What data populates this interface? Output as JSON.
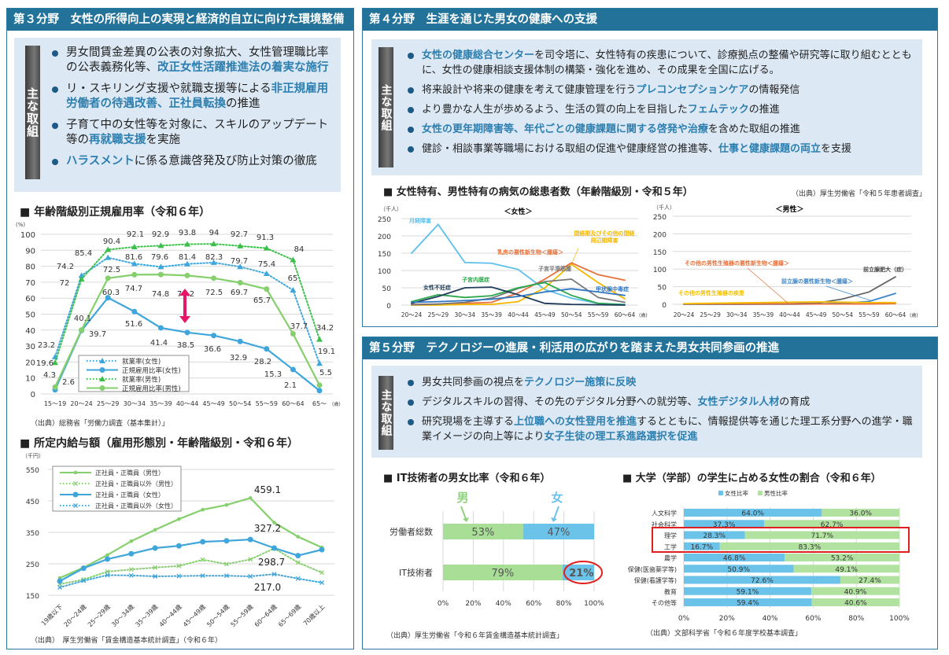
{
  "section3": {
    "header": "第３分野　女性の所得向上の実現と経済的自立に向けた環境整備",
    "label": "主な取組",
    "bullets": [
      [
        {
          "t": "男女間賃金差異の公表の対象拡大、女性管理職比率の公表義務化等、"
        },
        {
          "t": "改正女性活躍推進法の着実な施行",
          "hl": true
        }
      ],
      [
        {
          "t": "リ・スキリング支援や就職支援等による"
        },
        {
          "t": "非正規雇用労働者の待遇改善、正社員転換",
          "hl": true
        },
        {
          "t": "の推進"
        }
      ],
      [
        {
          "t": "子育て中の女性等を対象に、スキルのアップデート等の"
        },
        {
          "t": "再就職支援",
          "hl": true
        },
        {
          "t": "を実施"
        }
      ],
      [
        {
          "t": "ハラスメント",
          "hl": true
        },
        {
          "t": "に係る意識啓発及び防止対策の徹底"
        }
      ]
    ]
  },
  "section4": {
    "header": "第４分野　生涯を通じた男女の健康への支援",
    "label": "主な取組",
    "bullets": [
      [
        {
          "t": "女性の健康総合センター",
          "hl": true
        },
        {
          "t": "を司令塔に、女性特有の疾患について、診療拠点の整備や研究等に取り組むとともに、女性の健康相談支援体制の構築・強化を進め、その成果を全国に広げる。"
        }
      ],
      [
        {
          "t": "将来設計や将来の健康を考えて健康管理を行う"
        },
        {
          "t": "プレコンセプションケア",
          "hl": true
        },
        {
          "t": "の情報発信"
        }
      ],
      [
        {
          "t": "より豊かな人生が歩めるよう、生活の質の向上を目指した"
        },
        {
          "t": "フェムテック",
          "hl": true
        },
        {
          "t": "の推進"
        }
      ],
      [
        {
          "t": "女性の更年期障害等、年代ごとの健康課題に関する啓発や治療",
          "hl": true
        },
        {
          "t": "を含めた取組の推進"
        }
      ],
      [
        {
          "t": "健診・相談事業等職場における取組の促進や健康経営の推進等、"
        },
        {
          "t": "仕事と健康課題の両立",
          "hl": true
        },
        {
          "t": "を支援"
        }
      ]
    ]
  },
  "section5": {
    "header": "第５分野　テクノロジーの進展・利活用の広がりを踏まえた男女共同参画の推進",
    "label": "主な取組",
    "bullets": [
      [
        {
          "t": "男女共同参画の視点を"
        },
        {
          "t": "テクノロジー施策に反映",
          "hl": true
        }
      ],
      [
        {
          "t": "デジタルスキルの習得、その先のデジタル分野への就労等、"
        },
        {
          "t": "女性デジタル人材",
          "hl": true
        },
        {
          "t": "の育成"
        }
      ],
      [
        {
          "t": "研究現場を主導する"
        },
        {
          "t": "上位職への女性登用を推進",
          "hl": true
        },
        {
          "t": "するとともに、情報提供等を通じた理工系分野への進学・職業イメージの向上等により"
        },
        {
          "t": "女子生徒の理工系進路選択を促進",
          "hl": true
        }
      ]
    ]
  },
  "colors": {
    "header": "#22729a",
    "highlight": "#2d7fb0",
    "female": "#5bb5e0",
    "male": "#8fd27a",
    "accent_pink": "#e6176b",
    "red_box": "#e02020"
  },
  "chart_data": [
    {
      "id": "employment",
      "type": "line",
      "title": "■ 年齢階級別正規雇用率（令和６年）",
      "ylabel": "(%)",
      "xunit": "(歳)",
      "ylim": [
        0,
        100
      ],
      "yticks": [
        0,
        10,
        20,
        30,
        40,
        50,
        60,
        70,
        80,
        90,
        100
      ],
      "categories": [
        "15～19",
        "20～24",
        "25～29",
        "30～34",
        "35～39",
        "40～44",
        "45～49",
        "50～54",
        "55～59",
        "60～64",
        "65～"
      ],
      "series": [
        {
          "name": "就業率(女性)",
          "color": "#3fa6dc",
          "style": "dotted",
          "marker": "triangle",
          "values": [
            23.2,
            74.2,
            85.4,
            81.6,
            79.6,
            81.4,
            82.3,
            79.7,
            75.4,
            65.0,
            19.1
          ]
        },
        {
          "name": "正規雇用比率(女性)",
          "color": "#3fa6dc",
          "style": "solid",
          "marker": "circle",
          "values": [
            2.6,
            39.7,
            60.3,
            51.6,
            41.4,
            38.5,
            36.6,
            32.9,
            28.2,
            15.3,
            2.1
          ]
        },
        {
          "name": "就業率(男性)",
          "color": "#3cbf4a",
          "style": "dotted",
          "marker": "triangle",
          "values": [
            19.6,
            72.0,
            90.4,
            92.1,
            92.9,
            93.8,
            94.0,
            92.7,
            91.3,
            84.0,
            34.2
          ]
        },
        {
          "name": "正規雇用比率(男性)",
          "color": "#86cf6d",
          "style": "solid",
          "marker": "circle",
          "values": [
            4.3,
            40.1,
            72.5,
            74.7,
            74.8,
            74.2,
            72.5,
            69.7,
            65.7,
            37.7,
            5.5
          ]
        }
      ],
      "legend": "bottom-left",
      "source": "（出典）総務省「労働力調査（基本集計）」"
    },
    {
      "id": "wage",
      "type": "line",
      "title": "■ 所定内給与額（雇用形態別・年齢階級別・令和６年）",
      "ylabel": "（千円）",
      "ylim": [
        150,
        550
      ],
      "yticks": [
        150,
        250,
        350,
        450,
        550
      ],
      "categories": [
        "19歳以下",
        "20～24歳",
        "25～29歳",
        "30～34歳",
        "35～39歳",
        "40～44歳",
        "45～49歳",
        "50～54歳",
        "55～59歳",
        "60～64歳",
        "65～69歳",
        "70歳以上"
      ],
      "series": [
        {
          "name": "正社員・正職員（男性）",
          "color": "#86cf6d",
          "style": "solid",
          "marker": "dot",
          "values": [
            205,
            238,
            278,
            322,
            358,
            392,
            422,
            437,
            459.1,
            381,
            336,
            302
          ]
        },
        {
          "name": "正社員・正職員以外（男性）",
          "color": "#86cf6d",
          "style": "dotted",
          "marker": "x",
          "values": [
            185,
            200,
            225,
            232,
            238,
            243,
            263,
            249,
            264,
            298.7,
            254,
            222
          ]
        },
        {
          "name": "正社員・正職員（女性）",
          "color": "#3fa6dc",
          "style": "solid",
          "marker": "circle",
          "values": [
            195,
            236,
            265,
            282,
            300,
            307,
            320,
            323,
            327.2,
            300,
            276,
            295
          ]
        },
        {
          "name": "正社員・正職員以外（女性）",
          "color": "#3fa6dc",
          "style": "dotted",
          "marker": "x",
          "values": [
            175,
            196,
            214,
            213,
            210,
            211,
            212,
            212,
            210,
            217.0,
            203,
            190
          ]
        }
      ],
      "labels": [
        "459.1",
        "327.2",
        "298.7",
        "217.0"
      ],
      "legend": "top-left",
      "source": "（出典）　厚生労働省「賃金構造基本統計調査」（令和６年）"
    },
    {
      "id": "disease-female",
      "type": "line",
      "title": "■ 女性特有、男性特有の病気の総患者数（年齢階級別・令和５年）",
      "subtitle": "＜女性＞",
      "ylabel": "（千人）",
      "xunit": "(歳)",
      "ylim": [
        0,
        250
      ],
      "yticks": [
        0,
        50,
        100,
        150,
        200,
        250
      ],
      "categories": [
        "20～24",
        "25～29",
        "30～34",
        "35～39",
        "40～44",
        "45～49",
        "50～54",
        "55～59",
        "60～64"
      ],
      "series": [
        {
          "name": "月経障害",
          "color": "#5cc0ea",
          "values": [
            150,
            233,
            123,
            121,
            103,
            45,
            20,
            5,
            2
          ]
        },
        {
          "name": "乳房の悪性新生物＜腫瘍＞",
          "color": "#e8703a",
          "values": [
            2,
            3,
            5,
            8,
            35,
            75,
            122,
            88,
            72
          ]
        },
        {
          "name": "閉経期及びその他の閉経周辺期障害",
          "color": "#f5b800",
          "values": [
            0,
            0,
            2,
            2,
            10,
            50,
            118,
            65,
            18
          ]
        },
        {
          "name": "子宮平滑筋腫",
          "color": "#777777",
          "values": [
            1,
            3,
            8,
            20,
            48,
            68,
            75,
            22,
            8
          ]
        },
        {
          "name": "子宮内膜症",
          "color": "#2aa84a",
          "values": [
            10,
            30,
            22,
            27,
            50,
            65,
            28,
            5,
            1
          ]
        },
        {
          "name": "女性不妊症",
          "color": "#1f3b5a",
          "values": [
            5,
            25,
            50,
            52,
            30,
            5,
            2,
            1,
            0
          ]
        },
        {
          "name": "甲状腺中毒症",
          "color": "#2f75c0",
          "values": [
            8,
            10,
            13,
            17,
            25,
            38,
            47,
            38,
            28
          ]
        }
      ],
      "source": "（出典）厚生労働省「令和５年患者調査」"
    },
    {
      "id": "disease-male",
      "type": "line",
      "subtitle": "＜男性＞",
      "ylabel": "（千人）",
      "xunit": "(歳)",
      "ylim": [
        0,
        250
      ],
      "yticks": [
        0,
        50,
        100,
        150,
        200,
        250
      ],
      "categories": [
        "20～24",
        "25～29",
        "30～34",
        "35～39",
        "40～44",
        "45～49",
        "50～54",
        "55～59",
        "60～64"
      ],
      "series": [
        {
          "name": "前立腺肥大（症）",
          "color": "#666666",
          "values": [
            0,
            0,
            0,
            1,
            2,
            3,
            15,
            35,
            78
          ]
        },
        {
          "name": "前立腺の悪性新生物＜腫瘍＞",
          "color": "#3a86c8",
          "values": [
            0,
            0,
            0,
            0,
            0,
            1,
            3,
            8,
            31
          ]
        },
        {
          "name": "その他の男性生殖器の悪性新生物＜腫瘍＞",
          "color": "#e8703a",
          "values": [
            1,
            1,
            1,
            1,
            1,
            1,
            1,
            1,
            2
          ]
        },
        {
          "name": "その他の男性生殖器の疾患",
          "color": "#f5c000",
          "values": [
            2,
            3,
            4,
            5,
            6,
            7,
            6,
            5,
            5
          ]
        }
      ]
    },
    {
      "id": "it-ratio",
      "type": "bar",
      "title": "■ IT技術者の男女比率（令和６年）",
      "categories": [
        "労働者総数",
        "IT技術者"
      ],
      "series": [
        {
          "name": "男",
          "color": "#a8de96",
          "values": [
            53,
            79
          ]
        },
        {
          "name": "女",
          "color": "#6cc3ea",
          "values": [
            47,
            21
          ]
        }
      ],
      "xticks": [
        "0%",
        "20%",
        "40%",
        "60%",
        "80%",
        "100%"
      ],
      "xlim": [
        0,
        100
      ],
      "highlight": "21%",
      "source": "（出典）厚生労働省「令和６年賃金構造基本統計調査」"
    },
    {
      "id": "university",
      "type": "bar",
      "title": "■ 大学（学部）の学生に占める女性の割合（令和６年）",
      "categories": [
        "人文科学",
        "社会科学",
        "理学",
        "工学",
        "農学",
        "保健(医歯薬学等)",
        "保健(看護学等)",
        "教育",
        "その他等"
      ],
      "series": [
        {
          "name": "女性比率",
          "color": "#6cc3ea",
          "values": [
            64.0,
            37.3,
            28.3,
            16.7,
            46.8,
            50.9,
            72.6,
            59.1,
            59.4
          ]
        },
        {
          "name": "男性比率",
          "color": "#b2e2a0",
          "values": [
            36.0,
            62.7,
            71.7,
            83.3,
            53.2,
            49.1,
            27.4,
            40.9,
            40.6
          ]
        }
      ],
      "xticks": [
        "0%",
        "20%",
        "40%",
        "60%",
        "80%",
        "100%"
      ],
      "xlim": [
        0,
        100
      ],
      "legend": "top",
      "highlighted_categories": [
        "理学",
        "工学"
      ],
      "source": "（出典）文部科学省「令和６年度学校基本調査」"
    }
  ]
}
